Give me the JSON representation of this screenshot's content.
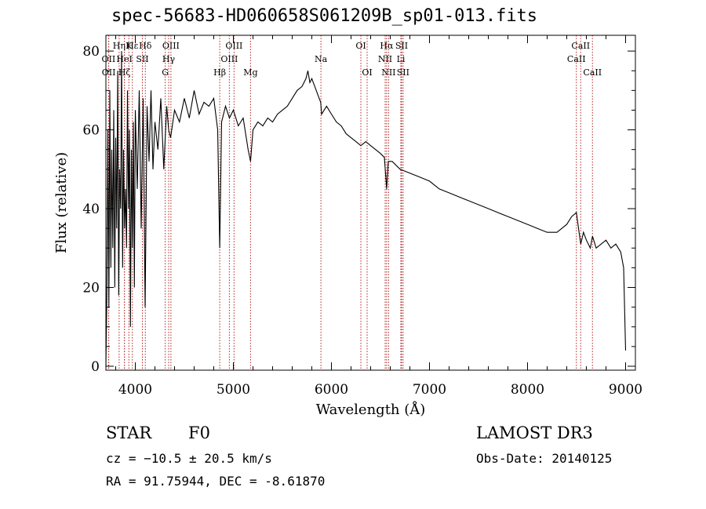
{
  "chart_data": {
    "type": "line",
    "title": "spec-56683-HD060658S061209B_sp01-013.fits",
    "xlabel": "Wavelength (Å)",
    "ylabel": "Flux (relative)",
    "xlim": [
      3700,
      9100
    ],
    "ylim": [
      -1,
      84
    ],
    "xticks": [
      4000,
      5000,
      6000,
      7000,
      8000,
      9000
    ],
    "yticks": [
      0,
      20,
      40,
      60,
      80
    ],
    "series": [
      {
        "name": "spectrum",
        "x": [
          3700,
          3710,
          3720,
          3730,
          3740,
          3750,
          3760,
          3770,
          3780,
          3790,
          3800,
          3810,
          3820,
          3830,
          3840,
          3850,
          3860,
          3870,
          3880,
          3890,
          3900,
          3910,
          3920,
          3930,
          3940,
          3950,
          3960,
          3970,
          3980,
          3990,
          4000,
          4020,
          4040,
          4060,
          4080,
          4100,
          4120,
          4140,
          4160,
          4180,
          4200,
          4230,
          4260,
          4290,
          4320,
          4340,
          4360,
          4400,
          4450,
          4500,
          4550,
          4600,
          4650,
          4700,
          4750,
          4800,
          4840,
          4861,
          4880,
          4920,
          4960,
          5000,
          5050,
          5100,
          5150,
          5175,
          5200,
          5250,
          5300,
          5350,
          5400,
          5450,
          5500,
          5550,
          5600,
          5650,
          5700,
          5740,
          5760,
          5780,
          5800,
          5830,
          5860,
          5890,
          5900,
          5950,
          6000,
          6050,
          6100,
          6150,
          6200,
          6250,
          6300,
          6350,
          6400,
          6450,
          6500,
          6540,
          6563,
          6580,
          6620,
          6700,
          6800,
          6900,
          7000,
          7100,
          7200,
          7300,
          7400,
          7500,
          7600,
          7700,
          7800,
          7900,
          8000,
          8100,
          8200,
          8300,
          8400,
          8450,
          8498,
          8520,
          8542,
          8570,
          8600,
          8640,
          8662,
          8700,
          8750,
          8800,
          8850,
          8900,
          8950,
          8980,
          9000
        ],
        "values": [
          0,
          20,
          60,
          15,
          70,
          25,
          55,
          30,
          65,
          20,
          58,
          35,
          75,
          18,
          50,
          40,
          80,
          25,
          55,
          35,
          45,
          30,
          70,
          40,
          60,
          10,
          55,
          30,
          62,
          20,
          65,
          45,
          70,
          35,
          68,
          15,
          66,
          52,
          70,
          50,
          62,
          55,
          68,
          50,
          66,
          60,
          58,
          65,
          62,
          68,
          63,
          70,
          64,
          67,
          66,
          68,
          60,
          30,
          62,
          66,
          63,
          65,
          61,
          63,
          55,
          52,
          60,
          62,
          61,
          63,
          62,
          64,
          65,
          66,
          68,
          70,
          71,
          73,
          75,
          72,
          73,
          71,
          69,
          67,
          64,
          66,
          64,
          62,
          61,
          59,
          58,
          57,
          56,
          57,
          56,
          55,
          54,
          53,
          45,
          52,
          52,
          50,
          49,
          48,
          47,
          45,
          44,
          43,
          42,
          41,
          40,
          39,
          38,
          37,
          36,
          35,
          34,
          34,
          36,
          38,
          39,
          35,
          31,
          34,
          32,
          30,
          33,
          30,
          31,
          32,
          30,
          31,
          29,
          25,
          4
        ]
      }
    ],
    "lines": [
      {
        "label": "Hε",
        "x": 3970,
        "row": 0
      },
      {
        "label": "Hη",
        "x": 3835,
        "row": 0
      },
      {
        "label": "K",
        "x": 3934,
        "row": 0
      },
      {
        "label": "Hδ",
        "x": 4102,
        "row": 0
      },
      {
        "label": "OIII",
        "x": 4363,
        "row": 0
      },
      {
        "label": "OIII",
        "x": 5007,
        "row": 0
      },
      {
        "label": "OI",
        "x": 6300,
        "row": 0
      },
      {
        "label": "Hα",
        "x": 6563,
        "row": 0
      },
      {
        "label": "SII",
        "x": 6716,
        "row": 0
      },
      {
        "label": "CaII",
        "x": 8542,
        "row": 0
      },
      {
        "label": "OII",
        "x": 3727,
        "row": 1
      },
      {
        "label": "HeI",
        "x": 3889,
        "row": 1
      },
      {
        "label": "SII",
        "x": 4072,
        "row": 1
      },
      {
        "label": "Hγ",
        "x": 4340,
        "row": 1
      },
      {
        "label": "OIII",
        "x": 4959,
        "row": 1
      },
      {
        "label": "Na",
        "x": 5893,
        "row": 1
      },
      {
        "label": "NII",
        "x": 6548,
        "row": 1
      },
      {
        "label": "Li",
        "x": 6708,
        "row": 1
      },
      {
        "label": "CaII",
        "x": 8498,
        "row": 1
      },
      {
        "label": "OII",
        "x": 3729,
        "row": 2
      },
      {
        "label": "Hζ",
        "x": 3889,
        "row": 2
      },
      {
        "label": "G",
        "x": 4305,
        "row": 2
      },
      {
        "label": "Hβ",
        "x": 4861,
        "row": 2
      },
      {
        "label": "Mg",
        "x": 5175,
        "row": 2
      },
      {
        "label": "OI",
        "x": 6364,
        "row": 2
      },
      {
        "label": "NII",
        "x": 6583,
        "row": 2
      },
      {
        "label": "SII",
        "x": 6731,
        "row": 2
      },
      {
        "label": "CaII",
        "x": 8662,
        "row": 2
      }
    ]
  },
  "info": {
    "object_type": "STAR",
    "subclass": "F0",
    "survey": "LAMOST DR3",
    "cz": "cz = −10.5 ± 20.5 km/s",
    "obs_date": "Obs-Date: 20140125",
    "coords": "RA =  91.75944, DEC =  -8.61870"
  },
  "colors": {
    "line_marker": "#b22222",
    "spectrum": "#000000"
  }
}
